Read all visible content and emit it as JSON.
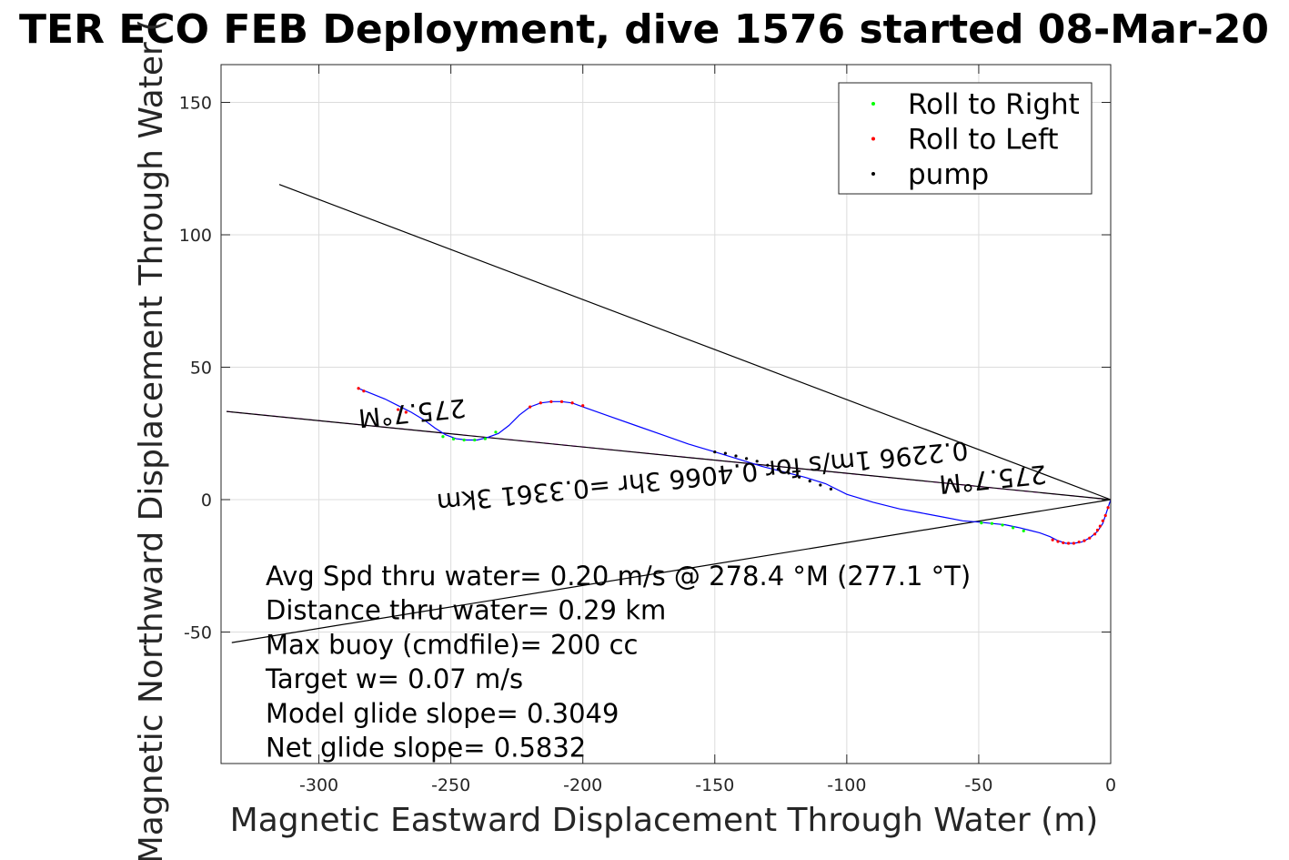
{
  "chart_data": {
    "type": "line",
    "title": "TER ECO FEB Deployment, dive 1576 started 08-Mar-20",
    "xlabel": "Magnetic Eastward Displacement Through Water (m)",
    "ylabel": "Magnetic Northward Displacement Through Water (",
    "xlim": [
      -335,
      0
    ],
    "ylim": [
      -99,
      164
    ],
    "xticks": [
      -300,
      -250,
      -200,
      -150,
      -100,
      -50,
      0
    ],
    "yticks": [
      -50,
      0,
      50,
      100,
      150
    ],
    "xtick_labels": [
      "-300",
      "-250",
      "-200",
      "-150",
      "-100",
      "-50",
      "0"
    ],
    "ytick_labels": [
      "-50",
      "0",
      "50",
      "100",
      "150"
    ],
    "grid": true,
    "legend_position": "top-right",
    "legend": [
      {
        "label": "Roll to Right",
        "color": "#00ff00"
      },
      {
        "label": "Roll to Left",
        "color": "#ff0000"
      },
      {
        "label": "pump",
        "color": "#000000"
      }
    ],
    "track_color": "#0000ff",
    "track": {
      "x": [
        0,
        -1,
        -2,
        -3,
        -5,
        -8,
        -11,
        -14,
        -17,
        -20,
        -23,
        -27,
        -31,
        -35,
        -40,
        -45,
        -50,
        -56,
        -64,
        -72,
        -80,
        -90,
        -100,
        -108,
        -116,
        -124,
        -132,
        -140,
        -150,
        -160,
        -170,
        -180,
        -190,
        -200,
        -204,
        -208,
        -212,
        -216,
        -220,
        -224,
        -228,
        -232,
        -236,
        -240,
        -244,
        -248,
        -252,
        -256,
        -260,
        -265,
        -270,
        -275,
        -280,
        -285
      ],
      "y": [
        0,
        -3,
        -6,
        -9,
        -12,
        -14.5,
        -16,
        -16.5,
        -16.5,
        -15.5,
        -14,
        -12.5,
        -11.5,
        -10.5,
        -9.5,
        -9,
        -8.5,
        -8,
        -6.5,
        -5,
        -3.5,
        -1,
        2,
        6,
        8.5,
        10.5,
        12.5,
        15,
        18,
        21,
        24.5,
        28,
        31.5,
        35,
        36.5,
        37,
        37,
        36.5,
        35,
        32,
        28,
        25,
        23.5,
        22.5,
        22.5,
        23,
        24.5,
        27,
        30,
        33,
        35.5,
        38,
        40,
        42
      ]
    },
    "roll_right_segments": [
      {
        "x": [
          -49,
          -45,
          -41,
          -37,
          -33
        ],
        "y": [
          -8.8,
          -9,
          -9.6,
          -10.6,
          -11.8
        ]
      },
      {
        "x": [
          -253,
          -249,
          -245,
          -241,
          -237,
          -233
        ],
        "y": [
          23.8,
          22.9,
          22.5,
          22.5,
          23,
          25.5
        ]
      }
    ],
    "roll_left_segments": [
      {
        "x": [
          -1,
          -2,
          -3,
          -4,
          -5,
          -6,
          -8,
          -10,
          -12,
          -14,
          -16,
          -18,
          -20,
          -22
        ],
        "y": [
          -3,
          -6,
          -8,
          -10,
          -11.5,
          -13,
          -14.5,
          -15.5,
          -16,
          -16.5,
          -16.5,
          -16.3,
          -15.8,
          -15.2
        ]
      },
      {
        "x": [
          -220,
          -216,
          -212,
          -208,
          -204,
          -200
        ],
        "y": [
          35,
          36.5,
          37,
          37,
          36.5,
          35.5
        ]
      },
      {
        "x": [
          -285,
          -283,
          -270,
          -267
        ],
        "y": [
          42,
          41,
          34,
          33
        ]
      }
    ],
    "pump_segments": [
      {
        "x": [
          -150,
          -146,
          -142,
          -138,
          -134,
          -130,
          -126,
          -122,
          -118,
          -114,
          -110,
          -106
        ],
        "y": [
          18,
          17.5,
          16.5,
          15.5,
          14.5,
          13,
          11.5,
          10,
          8.5,
          7,
          5.5,
          4
        ]
      }
    ],
    "heading_lines": [
      {
        "x": [
          0,
          -335
        ],
        "y": [
          0,
          33.3
        ],
        "color": "#ff00ff",
        "dash": true
      },
      {
        "x": [
          0,
          -335
        ],
        "y": [
          0,
          33.3
        ],
        "color": "#000000"
      },
      {
        "x": [
          0,
          -315
        ],
        "y": [
          0,
          119
        ]
      },
      {
        "x": [
          0,
          -333
        ],
        "y": [
          0,
          -54
        ]
      }
    ],
    "annotations": [
      {
        "text": "275.7°M",
        "x": -265,
        "y": 36,
        "rotation": 174.3
      },
      {
        "text": "275.7°M",
        "x": -45,
        "y": 11,
        "rotation": 174.3
      },
      {
        "text": "0.2296 1m/s for 0.4066 3hr =0.3361 3km",
        "x": -155,
        "y": 12,
        "rotation": 174.3
      }
    ],
    "stats": [
      "Avg Spd thru water=  0.20 m/s @ 278.4 °M (277.1 °T)",
      "Distance thru water=  0.29 km",
      "Max buoy (cmdfile)= 200 cc",
      "Target w= 0.07 m/s",
      "Model glide slope= 0.3049",
      "Net glide slope= 0.5832"
    ]
  }
}
